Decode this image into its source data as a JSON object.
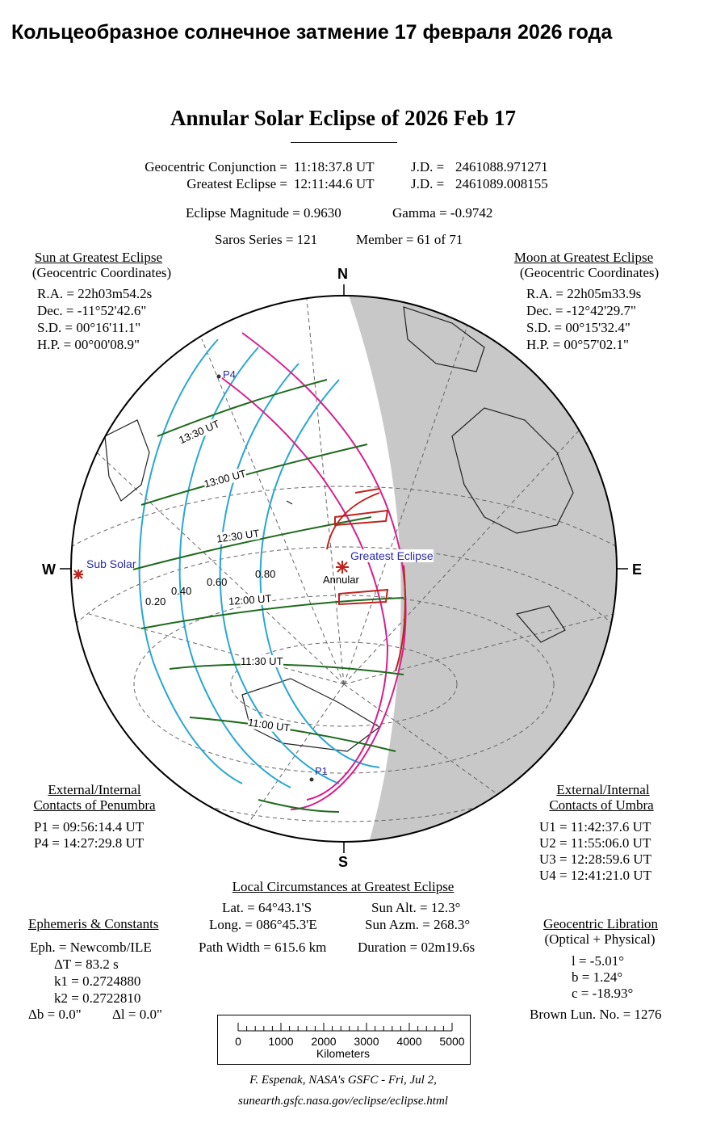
{
  "header": {
    "title_ru": "Кольцеобразное солнечное затмение 17 февраля 2026 года"
  },
  "main": {
    "title": "Annular Solar Eclipse of  2026 Feb 17",
    "conj_label": "Geocentric Conjunction =",
    "conj_time": "11:18:37.8 UT",
    "conj_jd_label": "J.D. =",
    "conj_jd": "2461088.971271",
    "ge_label": "Greatest Eclipse =",
    "ge_time": "12:11:44.6 UT",
    "ge_jd_label": "J.D. =",
    "ge_jd": "2461089.008155",
    "mag": "Eclipse Magnitude = 0.9630",
    "gamma": "Gamma = -0.9742",
    "saros": "Saros Series = 121",
    "member": "Member = 61 of 71"
  },
  "sun": {
    "title": "Sun at Greatest Eclipse",
    "subtitle": "(Geocentric Coordinates)",
    "ra": "R.A. = 22h03m54.2s",
    "dec": "Dec. = -11°52'42.6\"",
    "sd": "S.D. = 00°16'11.1\"",
    "hp": "H.P. = 00°00'08.9\""
  },
  "moon": {
    "title": "Moon at Greatest Eclipse",
    "subtitle": "(Geocentric Coordinates)",
    "ra": "R.A. = 22h05m33.9s",
    "dec": "Dec. = -12°42'29.7\"",
    "sd": "S.D. = 00°15'32.4\"",
    "hp": "H.P. = 00°57'02.1\""
  },
  "map": {
    "north": "N",
    "south": "S",
    "west": "W",
    "east": "E",
    "sub_solar": "Sub Solar",
    "greatest": "Greatest Eclipse",
    "annular": "Annular",
    "p1": "P1",
    "p4": "P4",
    "times": [
      "13:30 UT",
      "13:00 UT",
      "12:30 UT",
      "12:00 UT",
      "11:30 UT",
      "11:00 UT"
    ],
    "mags": [
      "0.20",
      "0.40",
      "0.60",
      "0.80"
    ],
    "colors": {
      "time_lines": "#1f6b1f",
      "magnitude": "#29a7d3",
      "penumbra_limits": "#d4208f",
      "umbra": "#c0221e",
      "night": "#c8c8c8"
    }
  },
  "penumbra": {
    "title1": "External/Internal",
    "title2": "Contacts of Penumbra",
    "p1": "P1 = 09:56:14.4 UT",
    "p4": "P4 = 14:27:29.8 UT"
  },
  "umbra": {
    "title1": "External/Internal",
    "title2": "Contacts of Umbra",
    "u1": "U1 = 11:42:37.6 UT",
    "u2": "U2 = 11:55:06.0 UT",
    "u3": "U3 = 12:28:59.6 UT",
    "u4": "U4 = 12:41:21.0 UT"
  },
  "local": {
    "title": "Local Circumstances at Greatest Eclipse",
    "lat": "Lat. =  64°43.1'S",
    "long": "Long. = 086°45.3'E",
    "path": "Path Width = 615.6 km",
    "alt": "Sun Alt. =  12.3°",
    "azm": "Sun Azm. = 268.3°",
    "dur": "Duration =  02m19.6s"
  },
  "ephem": {
    "title": "Ephemeris & Constants",
    "eph": "Eph. = Newcomb/ILE",
    "dt": "ΔT =     83.2 s",
    "k1": "k1 = 0.2724880",
    "k2": "k2 = 0.2722810",
    "db": "Δb =   0.0\"",
    "dl": "Δl =   0.0\""
  },
  "libration": {
    "title": "Geocentric Libration",
    "subtitle": "(Optical + Physical)",
    "l": "l =   -5.01°",
    "b": "b =   1.24°",
    "c": "c = -18.93°",
    "brown": "Brown Lun. No. = 1276"
  },
  "scale": {
    "ticks": [
      "0",
      "1000",
      "2000",
      "3000",
      "4000",
      "5000"
    ],
    "unit": "Kilometers"
  },
  "footer": {
    "credit": "F. Espenak, NASA's GSFC - Fri, Jul 2,",
    "url": "sunearth.gsfc.nasa.gov/eclipse/eclipse.html"
  }
}
